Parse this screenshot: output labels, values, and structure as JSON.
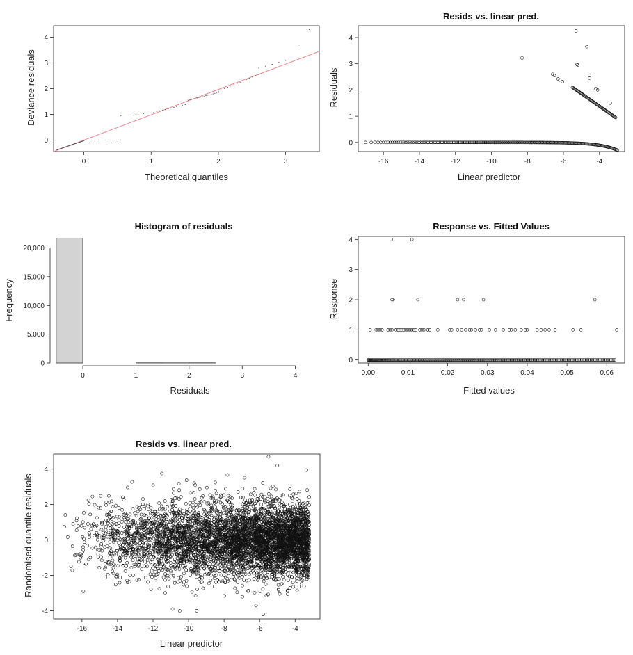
{
  "chart_data": [
    {
      "id": "qq",
      "type": "scatter",
      "title": "",
      "xlabel": "Theoretical quantiles",
      "ylabel": "Deviance residuals",
      "xlim": [
        -0.45,
        3.5
      ],
      "ylim": [
        -0.45,
        4.45
      ],
      "xticks": [
        "0",
        "1",
        "2",
        "3"
      ],
      "yticks": [
        "0",
        "1",
        "2",
        "3",
        "4"
      ],
      "reference_line": {
        "x": [
          -0.45,
          3.5
        ],
        "y": [
          -0.45,
          3.45
        ],
        "color": "#e8808a"
      },
      "point_color": "#444444",
      "series": [
        {
          "segments": [
            {
              "x0": -0.4,
              "x1": 0.0,
              "y0": -0.38,
              "y1": -0.03,
              "n": 45
            },
            {
              "x0": 0.0,
              "x1": 0.55,
              "y0": 0.0,
              "y1": 0.0,
              "n": 6
            },
            {
              "x0": 0.55,
              "x1": 1.0,
              "y0": 0.95,
              "y1": 1.05,
              "n": 5
            },
            {
              "x0": 1.0,
              "x1": 1.55,
              "y0": 1.05,
              "y1": 1.4,
              "n": 14
            },
            {
              "x0": 1.55,
              "x1": 2.0,
              "y0": 1.55,
              "y1": 1.85,
              "n": 18
            },
            {
              "x0": 2.0,
              "x1": 2.6,
              "y0": 1.9,
              "y1": 2.55,
              "n": 14
            },
            {
              "x0": 2.6,
              "x1": 3.0,
              "y0": 2.8,
              "y1": 3.1,
              "n": 5
            }
          ],
          "extra": [
            [
              3.2,
              3.7
            ],
            [
              3.35,
              4.3
            ]
          ]
        }
      ]
    },
    {
      "id": "resids_linpred",
      "type": "scatter",
      "title": "Resids vs. linear pred.",
      "xlabel": "Linear predictor",
      "ylabel": "Residuals",
      "xlim": [
        -17.4,
        -2.6
      ],
      "ylim": [
        -0.35,
        4.45
      ],
      "xticks": [
        "-16",
        "-14",
        "-12",
        "-10",
        "-8",
        "-6",
        "-4"
      ],
      "yticks": [
        "0",
        "1",
        "2",
        "3",
        "4"
      ],
      "zero_curve": {
        "x0": -17,
        "x1": -3,
        "n": 220
      },
      "band": {
        "x0": -5.5,
        "x1": -3.1,
        "y0": 2.1,
        "y1": 0.95,
        "n": 60
      },
      "scatter_points": [
        [
          -8.3,
          3.22
        ],
        [
          -6.6,
          2.6
        ],
        [
          -6.5,
          2.55
        ],
        [
          -6.3,
          2.42
        ],
        [
          -6.2,
          2.38
        ],
        [
          -6.05,
          2.32
        ],
        [
          -5.3,
          4.25
        ],
        [
          -5.25,
          2.97
        ],
        [
          -5.2,
          2.95
        ],
        [
          -4.7,
          3.65
        ],
        [
          -4.55,
          2.45
        ],
        [
          -4.2,
          2.05
        ],
        [
          -4.1,
          2.0
        ],
        [
          -3.4,
          1.5
        ]
      ]
    },
    {
      "id": "histogram",
      "type": "bar",
      "title": "Histogram of residuals",
      "xlabel": "Residuals",
      "ylabel": "Frequency",
      "xlim": [
        -0.55,
        4.45
      ],
      "ylim": [
        0,
        22000
      ],
      "xticks": [
        "0",
        "1",
        "2",
        "3",
        "4"
      ],
      "yticks": [
        "0",
        "5,000",
        "10,000",
        "15,000",
        "20,000"
      ],
      "bin_edges": [
        -0.5,
        0.0,
        0.5,
        1.0,
        1.5,
        2.0,
        2.5,
        3.0,
        3.5,
        4.0,
        4.5
      ],
      "values": [
        21700,
        0,
        0,
        25,
        20,
        25,
        0,
        0,
        0,
        0
      ],
      "bar_color": "#d3d3d3"
    },
    {
      "id": "response_fitted",
      "type": "scatter",
      "title": "Response vs. Fitted Values",
      "xlabel": "Fitted values",
      "ylabel": "Response",
      "xlim": [
        -0.0025,
        0.0645
      ],
      "ylim": [
        -0.1,
        4.1
      ],
      "xticks": [
        "0.00",
        "0.01",
        "0.02",
        "0.03",
        "0.04",
        "0.05",
        "0.06"
      ],
      "yticks": [
        "0",
        "1",
        "2",
        "3",
        "4"
      ],
      "zero_row": {
        "x0": 0.0,
        "x1": 0.062,
        "n": 240
      },
      "ones_row": [
        0.0005,
        0.002,
        0.0025,
        0.003,
        0.0035,
        0.005,
        0.0055,
        0.006,
        0.007,
        0.0075,
        0.008,
        0.0085,
        0.009,
        0.0095,
        0.01,
        0.0105,
        0.011,
        0.0115,
        0.012,
        0.013,
        0.0135,
        0.014,
        0.015,
        0.0155,
        0.0175,
        0.0205,
        0.021,
        0.0225,
        0.0235,
        0.0245,
        0.0255,
        0.026,
        0.027,
        0.028,
        0.0285,
        0.0305,
        0.032,
        0.034,
        0.0355,
        0.036,
        0.037,
        0.0385,
        0.0395,
        0.04,
        0.0425,
        0.0435,
        0.0445,
        0.0455,
        0.047,
        0.0515,
        0.0535,
        0.0625
      ],
      "twos_row": [
        0.006,
        0.0063,
        0.0125,
        0.0225,
        0.024,
        0.029,
        0.057
      ],
      "fours_row": [
        0.0058,
        0.011
      ]
    },
    {
      "id": "rqr_linpred",
      "type": "scatter",
      "title": "Resids vs. linear pred.",
      "xlabel": "Linear predictor",
      "ylabel": "Randomised quantile residuals",
      "xlim": [
        -17.6,
        -2.6
      ],
      "ylim": [
        -4.45,
        4.85
      ],
      "xticks": [
        "-16",
        "-14",
        "-12",
        "-10",
        "-8",
        "-6",
        "-4"
      ],
      "yticks": [
        "-4",
        "-2",
        "0",
        "2",
        "4"
      ],
      "cloud": {
        "x0": -17,
        "x1": -3.2,
        "n": 5200,
        "seed": 7
      },
      "outliers": [
        [
          -17,
          0.75
        ],
        [
          -16.5,
          0.9
        ],
        [
          -16.3,
          0.55
        ],
        [
          -15.6,
          0.4
        ],
        [
          -11.5,
          3.75
        ],
        [
          -5.5,
          4.7
        ],
        [
          -5.0,
          4.2
        ],
        [
          -5.8,
          -4.2
        ],
        [
          -6.2,
          -3.7
        ],
        [
          -10.9,
          -3.9
        ],
        [
          -10.5,
          -4.0
        ]
      ]
    }
  ]
}
